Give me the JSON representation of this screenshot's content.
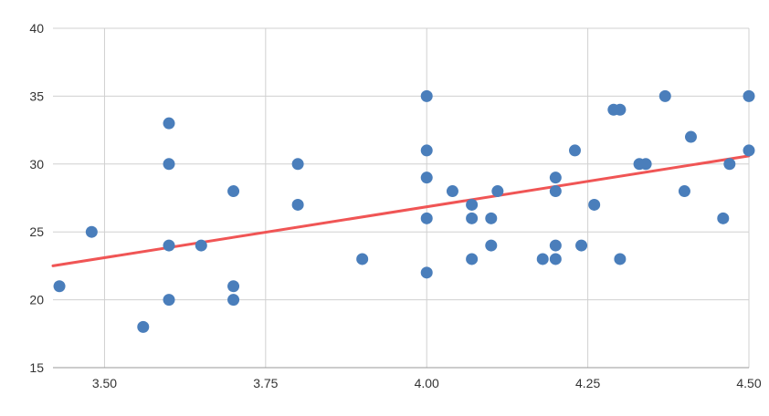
{
  "chart_data": {
    "type": "scatter",
    "title": "",
    "xlabel": "",
    "ylabel": "",
    "xlim": [
      3.42,
      4.5
    ],
    "ylim": [
      15,
      40
    ],
    "x_ticks": [
      3.5,
      3.75,
      4.0,
      4.25,
      4.5
    ],
    "x_tick_labels": [
      "3.50",
      "3.75",
      "4.00",
      "4.25",
      "4.50"
    ],
    "y_ticks": [
      15,
      20,
      25,
      30,
      35,
      40
    ],
    "y_tick_labels": [
      "15",
      "20",
      "25",
      "30",
      "35",
      "40"
    ],
    "grid": true,
    "legend": "none",
    "series": [
      {
        "color": "#4a7ebb",
        "points": [
          [
            3.43,
            21
          ],
          [
            3.48,
            25
          ],
          [
            3.56,
            18
          ],
          [
            3.6,
            33
          ],
          [
            3.6,
            30
          ],
          [
            3.6,
            24
          ],
          [
            3.6,
            20
          ],
          [
            3.65,
            24
          ],
          [
            3.7,
            28
          ],
          [
            3.7,
            21
          ],
          [
            3.7,
            20
          ],
          [
            3.8,
            30
          ],
          [
            3.8,
            27
          ],
          [
            3.9,
            23
          ],
          [
            4.0,
            35
          ],
          [
            4.0,
            31
          ],
          [
            4.0,
            29
          ],
          [
            4.0,
            26
          ],
          [
            4.0,
            22
          ],
          [
            4.04,
            28
          ],
          [
            4.07,
            27
          ],
          [
            4.07,
            26
          ],
          [
            4.07,
            23
          ],
          [
            4.1,
            26
          ],
          [
            4.1,
            24
          ],
          [
            4.11,
            28
          ],
          [
            4.18,
            23
          ],
          [
            4.2,
            29
          ],
          [
            4.2,
            28
          ],
          [
            4.2,
            24
          ],
          [
            4.2,
            23
          ],
          [
            4.23,
            31
          ],
          [
            4.24,
            24
          ],
          [
            4.26,
            27
          ],
          [
            4.29,
            34
          ],
          [
            4.3,
            34
          ],
          [
            4.3,
            23
          ],
          [
            4.33,
            30
          ],
          [
            4.34,
            30
          ],
          [
            4.37,
            35
          ],
          [
            4.4,
            28
          ],
          [
            4.41,
            32
          ],
          [
            4.46,
            26
          ],
          [
            4.47,
            30
          ],
          [
            4.5,
            35
          ],
          [
            4.5,
            31
          ]
        ]
      }
    ],
    "trendline": {
      "color": "#f05555",
      "start": [
        3.42,
        22.5
      ],
      "end": [
        4.5,
        30.6
      ]
    }
  }
}
